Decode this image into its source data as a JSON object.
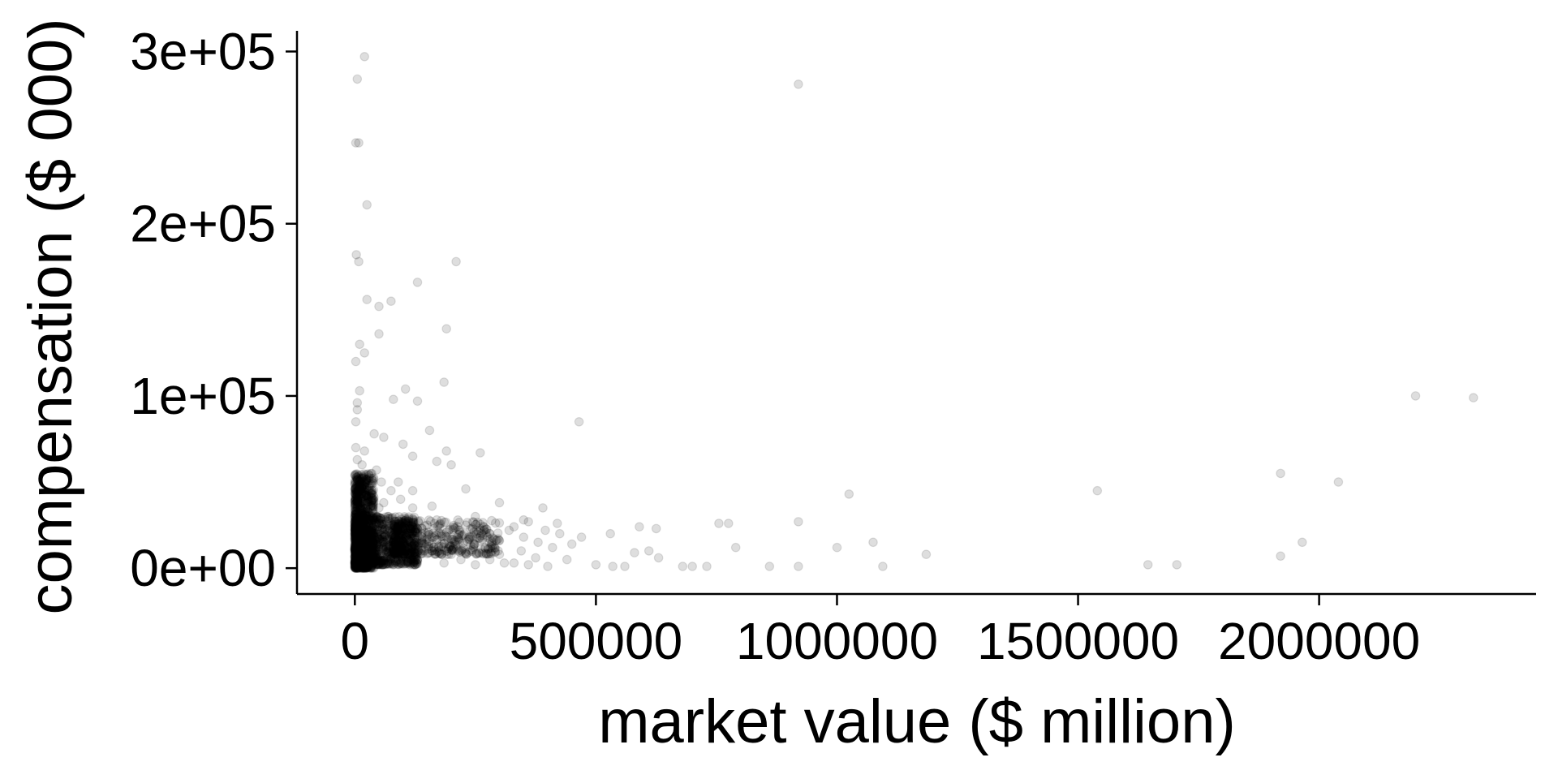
{
  "chart_data": {
    "type": "scatter",
    "title": "",
    "xlabel": "market value ($ million)",
    "ylabel": "compensation ($ 000)",
    "xlim": [
      -120000,
      2450000
    ],
    "ylim": [
      -15000,
      312000
    ],
    "xticks": [
      0,
      500000,
      1000000,
      1500000,
      2000000
    ],
    "xtick_labels": [
      "0",
      "500000",
      "1000000",
      "1500000",
      "2000000"
    ],
    "yticks": [
      0,
      100000,
      200000,
      300000
    ],
    "ytick_labels": [
      "0e+00",
      "1e+05",
      "2e+05",
      "3e+05"
    ],
    "grid": false,
    "legend": "none",
    "point_color": "#000000",
    "point_opacity": 0.13,
    "series": [
      {
        "points": [
          [
            20000,
            297000
          ],
          [
            5000,
            284000
          ],
          [
            920000,
            281000
          ],
          [
            2000,
            247000
          ],
          [
            8000,
            247000
          ],
          [
            25000,
            211000
          ],
          [
            3000,
            182000
          ],
          [
            8000,
            178000
          ],
          [
            210000,
            178000
          ],
          [
            130000,
            166000
          ],
          [
            25000,
            156000
          ],
          [
            75000,
            155000
          ],
          [
            50000,
            152000
          ],
          [
            50000,
            136000
          ],
          [
            190000,
            139000
          ],
          [
            10000,
            130000
          ],
          [
            20000,
            125000
          ],
          [
            2000,
            120000
          ],
          [
            185000,
            108000
          ],
          [
            10000,
            103000
          ],
          [
            105000,
            104000
          ],
          [
            2200000,
            100000
          ],
          [
            2320000,
            99000
          ],
          [
            5000,
            96000
          ],
          [
            130000,
            97000
          ],
          [
            80000,
            98000
          ],
          [
            5000,
            92000
          ],
          [
            2000,
            85000
          ],
          [
            465000,
            85000
          ],
          [
            40000,
            78000
          ],
          [
            155000,
            80000
          ],
          [
            60000,
            76000
          ],
          [
            100000,
            72000
          ],
          [
            2000,
            70000
          ],
          [
            20000,
            68000
          ],
          [
            190000,
            68000
          ],
          [
            260000,
            67000
          ],
          [
            120000,
            65000
          ],
          [
            170000,
            62000
          ],
          [
            15000,
            60000
          ],
          [
            45000,
            57000
          ],
          [
            200000,
            60000
          ],
          [
            1920000,
            55000
          ],
          [
            2040000,
            50000
          ],
          [
            90000,
            50000
          ],
          [
            10000,
            48000
          ],
          [
            120000,
            45000
          ],
          [
            230000,
            46000
          ],
          [
            1540000,
            45000
          ],
          [
            1025000,
            43000
          ],
          [
            300000,
            38000
          ],
          [
            390000,
            35000
          ],
          [
            25000,
            42000
          ],
          [
            60000,
            38000
          ],
          [
            160000,
            36000
          ],
          [
            250000,
            30000
          ],
          [
            350000,
            28000
          ],
          [
            420000,
            26000
          ],
          [
            470000,
            18000
          ],
          [
            530000,
            20000
          ],
          [
            590000,
            24000
          ],
          [
            625000,
            23000
          ],
          [
            755000,
            26000
          ],
          [
            775000,
            26000
          ],
          [
            920000,
            27000
          ],
          [
            610000,
            10000
          ],
          [
            580000,
            9000
          ],
          [
            630000,
            6000
          ],
          [
            790000,
            12000
          ],
          [
            1000000,
            12000
          ],
          [
            1075000,
            15000
          ],
          [
            1185000,
            8000
          ],
          [
            1920000,
            7000
          ],
          [
            1965000,
            15000
          ],
          [
            500000,
            2000
          ],
          [
            535000,
            1000
          ],
          [
            560000,
            1000
          ],
          [
            680000,
            1000
          ],
          [
            700000,
            1000
          ],
          [
            730000,
            1000
          ],
          [
            860000,
            1000
          ],
          [
            920000,
            1000
          ],
          [
            1095000,
            1000
          ],
          [
            1645000,
            2000
          ],
          [
            1705000,
            2000
          ],
          [
            400000,
            1000
          ],
          [
            360000,
            2000
          ],
          [
            330000,
            3000
          ],
          [
            440000,
            5000
          ],
          [
            300000,
            8000
          ],
          [
            270000,
            12000
          ],
          [
            380000,
            15000
          ],
          [
            320000,
            22000
          ],
          [
            280000,
            20000
          ],
          [
            350000,
            18000
          ],
          [
            210000,
            15000
          ],
          [
            180000,
            20000
          ],
          [
            240000,
            18000
          ],
          [
            150000,
            25000
          ],
          [
            100000,
            22000
          ],
          [
            70000,
            30000
          ],
          [
            50000,
            35000
          ],
          [
            30000,
            45000
          ],
          [
            15000,
            52000
          ],
          [
            5000,
            63000
          ],
          [
            40000,
            20000
          ],
          [
            60000,
            15000
          ],
          [
            80000,
            25000
          ],
          [
            120000,
            12000
          ],
          [
            140000,
            18000
          ],
          [
            160000,
            10000
          ],
          [
            200000,
            8000
          ],
          [
            220000,
            5000
          ],
          [
            90000,
            5000
          ],
          [
            110000,
            8000
          ],
          [
            170000,
            28000
          ],
          [
            230000,
            25000
          ],
          [
            260000,
            22000
          ],
          [
            300000,
            16000
          ],
          [
            330000,
            24000
          ],
          [
            360000,
            27000
          ],
          [
            395000,
            22000
          ],
          [
            410000,
            12000
          ],
          [
            450000,
            14000
          ],
          [
            120000,
            35000
          ],
          [
            95000,
            40000
          ],
          [
            75000,
            45000
          ],
          [
            55000,
            50000
          ],
          [
            35000,
            55000
          ],
          [
            25000,
            30000
          ],
          [
            45000,
            8000
          ],
          [
            65000,
            12000
          ],
          [
            130000,
            5000
          ],
          [
            185000,
            3000
          ],
          [
            250000,
            2000
          ],
          [
            280000,
            5000
          ],
          [
            310000,
            3000
          ],
          [
            345000,
            10000
          ],
          [
            375000,
            6000
          ],
          [
            425000,
            20000
          ]
        ]
      }
    ],
    "dense_clusters": [
      {
        "x_min": 0,
        "x_max": 40000,
        "y_min": 0,
        "y_max": 55000,
        "n": 900
      },
      {
        "x_min": 0,
        "x_max": 130000,
        "y_min": 2000,
        "y_max": 30000,
        "n": 900
      },
      {
        "x_min": 80000,
        "x_max": 300000,
        "y_min": 8000,
        "y_max": 28000,
        "n": 450
      }
    ]
  }
}
